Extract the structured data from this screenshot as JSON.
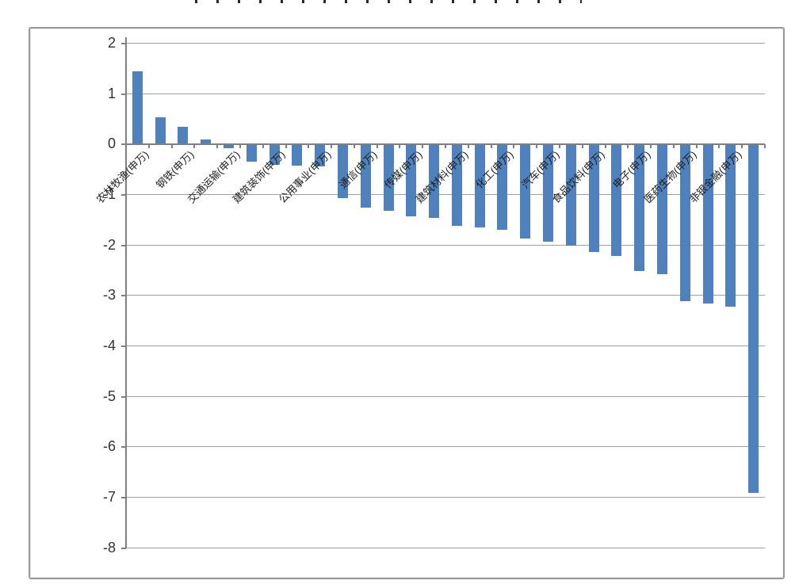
{
  "chart_data": {
    "type": "bar",
    "title": "",
    "xlabel": "",
    "ylabel": "",
    "categories": [
      "农林牧渔(申万)",
      "",
      "钢铁(申万)",
      "",
      "交通运输(申万)",
      "",
      "建筑装饰(申万)",
      "",
      "公用事业(申万)",
      "",
      "通信(申万)",
      "",
      "传媒(申万)",
      "",
      "建筑材料(申万)",
      "",
      "化工(申万)",
      "",
      "汽车(申万)",
      "",
      "食品饮料(申万)",
      "",
      "电子(申万)",
      "",
      "医药生物(申万)",
      "",
      "非银金融(申万)",
      ""
    ],
    "values": [
      1.43,
      0.52,
      0.33,
      0.09,
      -0.07,
      -0.33,
      -0.39,
      -0.41,
      -0.42,
      -1.05,
      -1.25,
      -1.3,
      -1.42,
      -1.45,
      -1.6,
      -1.63,
      -1.68,
      -1.85,
      -1.92,
      -2.0,
      -2.13,
      -2.2,
      -2.5,
      -2.56,
      -3.09,
      -3.15,
      -3.2,
      -6.9
    ],
    "ylim": [
      -8,
      2
    ],
    "yticks": [
      2,
      1,
      0,
      -1,
      -2,
      -3,
      -4,
      -5,
      -6,
      -7,
      -8
    ],
    "x_label_rotation_deg": 45,
    "grid": true,
    "legend_position": "none",
    "bar_color": "#4f81bd",
    "gridline_color": "#a0a0a0",
    "axis_color": "#808080"
  }
}
